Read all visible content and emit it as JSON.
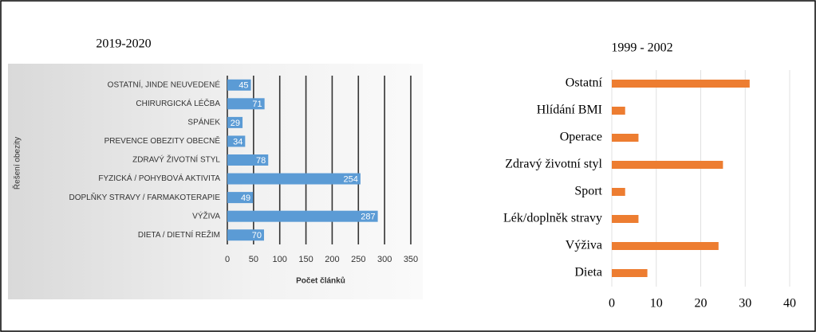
{
  "chart_data": [
    {
      "type": "bar",
      "orientation": "horizontal",
      "title": "2019-2020",
      "x_label": "Počet článků",
      "y_label": "Řešení obezity",
      "categories": [
        "OSTATNÍ, JINDE NEUVEDENÉ",
        "CHIRURGICKÁ LÉČBA",
        "SPÁNEK",
        "PREVENCE OBEZITY OBECNĚ",
        "ZDRAVÝ ŽIVOTNÍ STYL",
        "FYZICKÁ / POHYBOVÁ AKTIVITA",
        "DOPLŇKY STRAVY / FARMAKOTERAPIE",
        "VÝŽIVA",
        "DIETA / DIETNÍ REŽIM"
      ],
      "values": [
        45,
        71,
        29,
        34,
        78,
        254,
        49,
        287,
        70
      ],
      "color": "#5b9bd5",
      "xlim": [
        0,
        350
      ],
      "xticks": [
        0,
        50,
        100,
        150,
        200,
        250,
        300,
        350
      ],
      "grid": true,
      "data_labels": true
    },
    {
      "type": "bar",
      "orientation": "horizontal",
      "title": "1999 - 2002",
      "categories": [
        "Ostatní",
        "Hlídání BMI",
        "Operace",
        "Zdravý životní styl",
        "Sport",
        "Lék/doplněk stravy",
        "Výživa",
        "Dieta"
      ],
      "values": [
        31,
        3,
        6,
        25,
        3,
        6,
        24,
        8
      ],
      "color": "#ed7d31",
      "xlim": [
        0,
        40
      ],
      "xticks": [
        0,
        10,
        20,
        30,
        40
      ],
      "grid": true,
      "data_labels": false
    }
  ]
}
